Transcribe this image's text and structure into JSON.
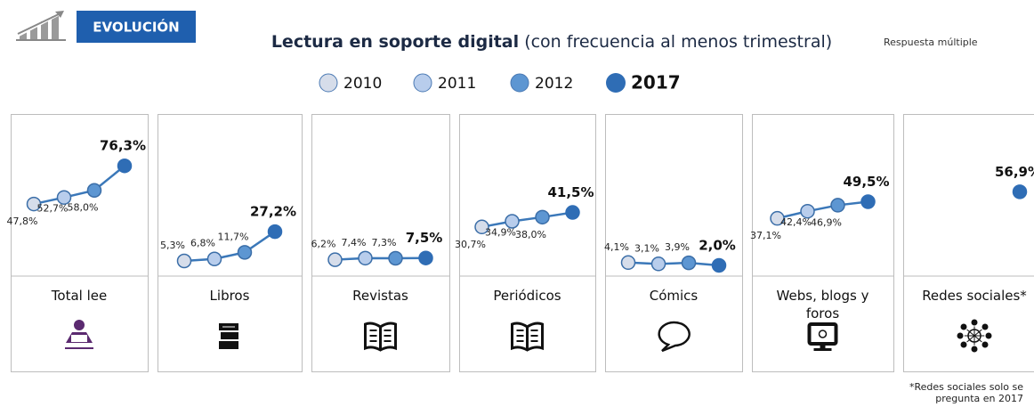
{
  "chart_data": {
    "type": "line",
    "badge": "EVOLUCIÓN",
    "title": "Lectura en soporte digital",
    "subtitle": "(con frecuencia al menos trimestral)",
    "note": "Respuesta múltiple",
    "footnote": "*Redes sociales solo se pregunta en 2017",
    "categories": [
      "Total lee",
      "Libros",
      "Revistas",
      "Periódicos",
      "Cómics",
      "Webs, blogs y foros",
      "Redes sociales*"
    ],
    "ylim": [
      -6,
      115
    ],
    "line_color": "#3b78b9",
    "series": [
      {
        "name": "2010",
        "color": "#d6ddea",
        "values": [
          47.8,
          5.3,
          6.2,
          30.7,
          4.1,
          37.1,
          null
        ],
        "value_labels": [
          "47,8%",
          "5,3%",
          "6,2%",
          "30,7%",
          "4,1%",
          "37,1%",
          null
        ]
      },
      {
        "name": "2011",
        "color": "#b8cdec",
        "values": [
          52.7,
          6.8,
          7.4,
          34.9,
          3.1,
          42.4,
          null
        ],
        "value_labels": [
          "52,7%",
          "6,8%",
          "7,4%",
          "34,9%",
          "3,1%",
          "42,4%",
          null
        ]
      },
      {
        "name": "2012",
        "color": "#5d96d2",
        "values": [
          58.0,
          11.7,
          7.3,
          38.0,
          3.9,
          46.9,
          null
        ],
        "value_labels": [
          "58,0%",
          "11,7%",
          "7,3%",
          "38,0%",
          "3,9%",
          "46,9%",
          null
        ]
      },
      {
        "name": "2017",
        "color": "#2f6db5",
        "values": [
          76.3,
          27.2,
          7.5,
          41.5,
          2.0,
          49.5,
          56.9
        ],
        "value_labels": [
          "76,3%",
          "27,2%",
          "7,5%",
          "41,5%",
          "2,0%",
          "49,5%",
          "56,9%"
        ]
      }
    ]
  }
}
